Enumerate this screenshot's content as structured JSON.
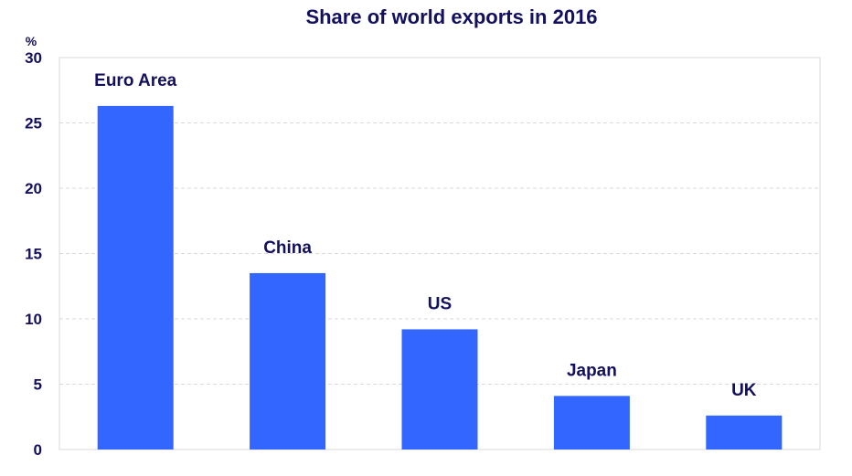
{
  "chart_data": {
    "type": "bar",
    "title": "Share of world exports in 2016",
    "unit_label": "%",
    "categories": [
      "Euro Area",
      "China",
      "US",
      "Japan",
      "UK"
    ],
    "values": [
      26.3,
      13.5,
      9.2,
      4.1,
      2.6
    ],
    "ylim": [
      0,
      30
    ],
    "yticks": [
      0,
      5,
      10,
      15,
      20,
      25,
      30
    ],
    "grid": true,
    "legend": "none",
    "bar_color": "#3366ff",
    "text_color": "#13105e"
  }
}
